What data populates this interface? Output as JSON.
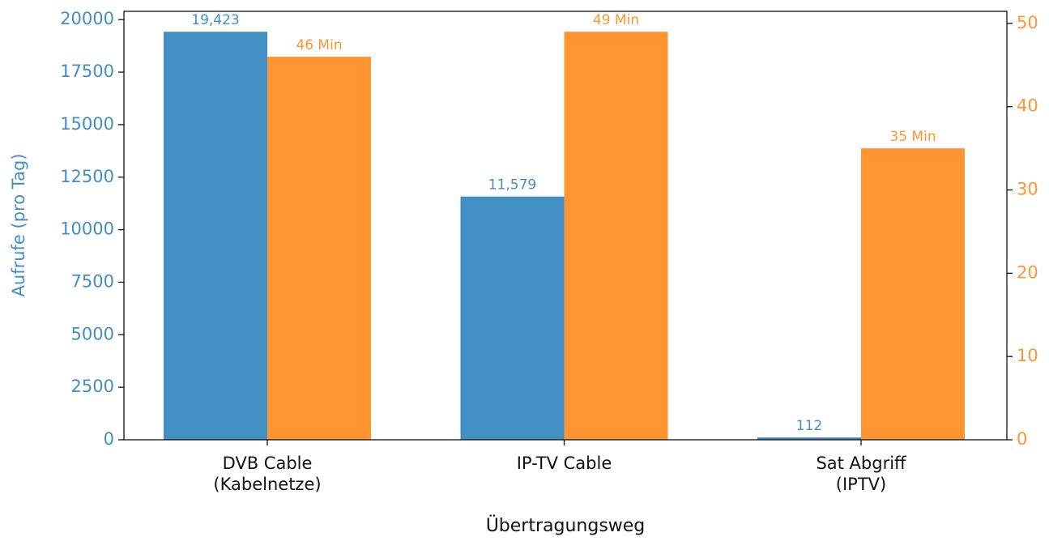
{
  "chart_data": {
    "type": "bar",
    "categories": [
      "DVB Cable\n(Kabelnetze)",
      "IP-TV Cable",
      "Sat Abgriff\n(IPTV)"
    ],
    "xlabel": "Übertragungsweg",
    "ylabel": "Aufrufe (pro Tag)",
    "ylim": [
      0,
      20394
    ],
    "yticks": [
      0,
      2500,
      5000,
      7500,
      10000,
      12500,
      15000,
      17500,
      20000
    ],
    "y2lim": [
      0,
      51.45
    ],
    "y2ticks": [
      0,
      10,
      20,
      30,
      40,
      50
    ],
    "series": [
      {
        "color": "#428fc4",
        "values": [
          19423,
          11579,
          112
        ],
        "value_labels": [
          "19,423",
          "11,579",
          "112"
        ]
      },
      {
        "color": "#ff9633",
        "axis": "y2",
        "values": [
          46,
          49,
          35
        ],
        "value_labels": [
          "46 Min",
          "49 Min",
          "35 Min"
        ]
      }
    ]
  }
}
